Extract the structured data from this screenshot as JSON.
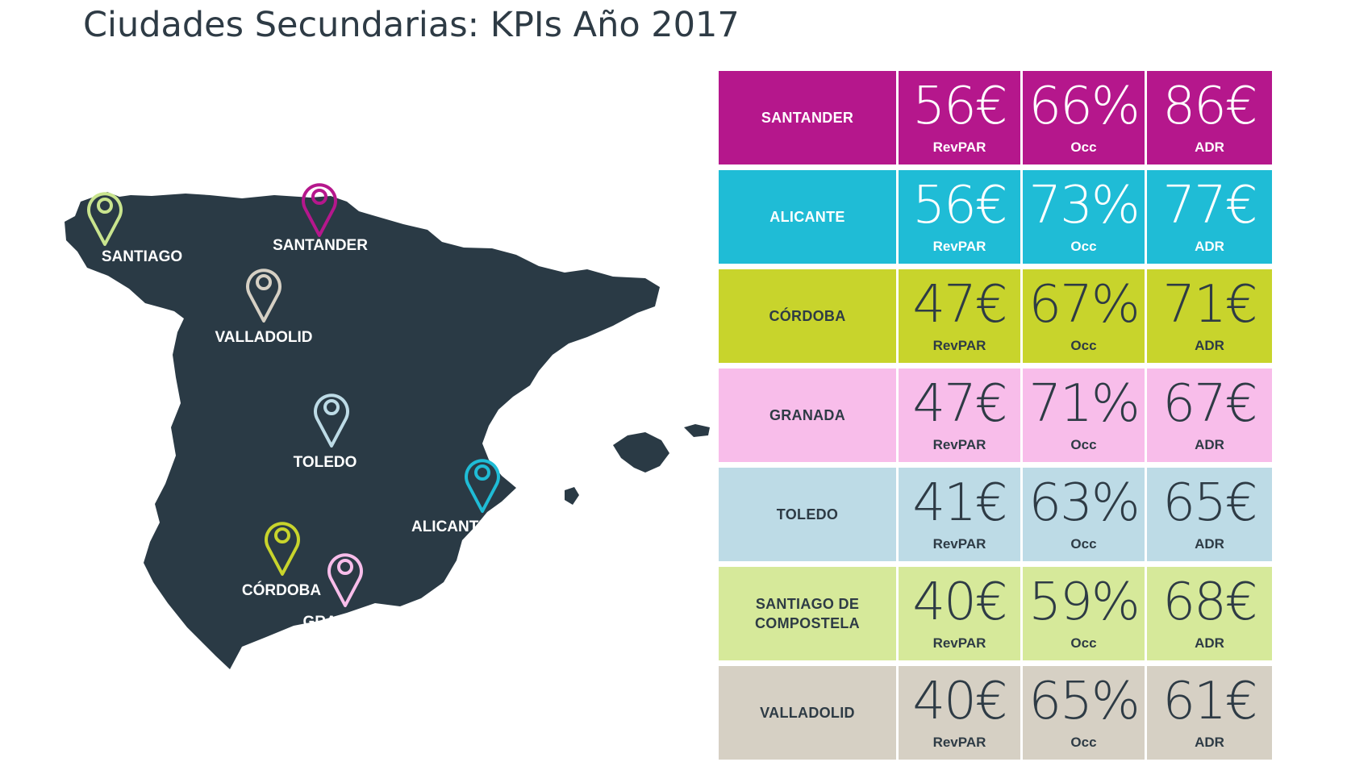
{
  "title": "Ciudades Secundarias: KPIs Año 2017",
  "map": {
    "land_color": "#2a3a45",
    "pins": [
      {
        "label": "SANTIAGO",
        "color": "#c9e48e",
        "icon": "map-pin-icon"
      },
      {
        "label": "SANTANDER",
        "color": "#b5178c",
        "icon": "map-pin-icon"
      },
      {
        "label": "VALLADOLID",
        "color": "#d6d0c4",
        "icon": "map-pin-icon"
      },
      {
        "label": "TOLEDO",
        "color": "#bddbe6",
        "icon": "map-pin-icon"
      },
      {
        "label": "ALICANTE",
        "color": "#1fbcd6",
        "icon": "map-pin-icon"
      },
      {
        "label": "CÓRDOBA",
        "color": "#c8d42c",
        "icon": "map-pin-icon"
      },
      {
        "label": "GRANADA",
        "color": "#f8bdea",
        "icon": "map-pin-icon"
      }
    ]
  },
  "table": {
    "rows": [
      {
        "city": "SANTANDER",
        "color": "#b5178c",
        "revpar": "56€",
        "occ": "66%",
        "adr": "86€",
        "revpar_label": "RevPAR",
        "occ_label": "Occ",
        "adr_label": "ADR"
      },
      {
        "city": "ALICANTE",
        "color": "#1fbcd6",
        "revpar": "56€",
        "occ": "73%",
        "adr": "77€",
        "revpar_label": "RevPAR",
        "occ_label": "Occ",
        "adr_label": "ADR"
      },
      {
        "city": "CÓRDOBA",
        "color": "#c8d42c",
        "revpar": "47€",
        "occ": "67%",
        "adr": "71€",
        "revpar_label": "RevPAR",
        "occ_label": "Occ",
        "adr_label": "ADR"
      },
      {
        "city": "GRANADA",
        "color": "#f8bdea",
        "revpar": "47€",
        "occ": "71%",
        "adr": "67€",
        "revpar_label": "RevPAR",
        "occ_label": "Occ",
        "adr_label": "ADR"
      },
      {
        "city": "TOLEDO",
        "color": "#bddbe6",
        "revpar": "41€",
        "occ": "63%",
        "adr": "65€",
        "revpar_label": "RevPAR",
        "occ_label": "Occ",
        "adr_label": "ADR"
      },
      {
        "city": "SANTIAGO DE\nCOMPOSTELA",
        "color": "#d6e99a",
        "revpar": "40€",
        "occ": "59%",
        "adr": "68€",
        "revpar_label": "RevPAR",
        "occ_label": "Occ",
        "adr_label": "ADR"
      },
      {
        "city": "VALLADOLID",
        "color": "#d6d0c4",
        "revpar": "40€",
        "occ": "65%",
        "adr": "61€",
        "revpar_label": "RevPAR",
        "occ_label": "Occ",
        "adr_label": "ADR"
      }
    ]
  }
}
